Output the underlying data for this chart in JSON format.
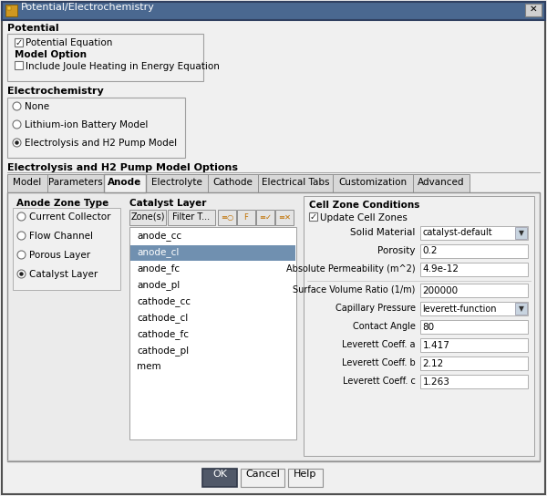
{
  "title": "Potential/Electrochemistry",
  "bg_color": "#f0f0f0",
  "white": "#ffffff",
  "blue_selected": "#7090b0",
  "tab_active": "Anode",
  "tabs": [
    "Model",
    "Parameters",
    "Anode",
    "Electrolyte",
    "Cathode",
    "Electrical Tabs",
    "Customization",
    "Advanced"
  ],
  "tab_widths": [
    44,
    62,
    46,
    68,
    55,
    82,
    88,
    62
  ],
  "section_potential": "Potential",
  "potential_eq_label": "Potential Equation",
  "model_option_label": "Model Option",
  "joule_heating_label": "Include Joule Heating in Energy Equation",
  "section_electrochemistry": "Electrochemistry",
  "radio_options": [
    "None",
    "Lithium-ion Battery Model",
    "Electrolysis and H2 Pump Model"
  ],
  "radio_selected": 2,
  "section_model_options": "Electrolysis and H2 Pump Model Options",
  "anode_zone_type_label": "Anode Zone Type",
  "anode_zone_options": [
    "Current Collector",
    "Flow Channel",
    "Porous Layer",
    "Catalyst Layer"
  ],
  "anode_zone_selected": 3,
  "catalyst_layer_label": "Catalyst Layer",
  "zones_label": "Zone(s)",
  "filter_label": "Filter T...",
  "zone_list": [
    "anode_cc",
    "anode_cl",
    "anode_fc",
    "anode_pl",
    "cathode_cc",
    "cathode_cl",
    "cathode_fc",
    "cathode_pl",
    "mem"
  ],
  "zone_selected": "anode_cl",
  "cell_zone_conditions_label": "Cell Zone Conditions",
  "update_cell_zones_label": "Update Cell Zones",
  "solid_material_label": "Solid Material",
  "solid_material_value": "catalyst-default",
  "porosity_label": "Porosity",
  "porosity_value": "0.2",
  "abs_perm_label": "Absolute Permeability (m^2)",
  "abs_perm_value": "4.9e-12",
  "surf_vol_label": "Surface Volume Ratio (1/m)",
  "surf_vol_value": "200000",
  "cap_pressure_label": "Capillary Pressure",
  "cap_pressure_value": "leverett-function",
  "contact_angle_label": "Contact Angle",
  "contact_angle_value": "80",
  "lev_a_label": "Leverett Coeff. a",
  "lev_a_value": "1.417",
  "lev_b_label": "Leverett Coeff. b",
  "lev_b_value": "2.12",
  "lev_c_label": "Leverett Coeff. c",
  "lev_c_value": "1.263",
  "btn_ok": "OK",
  "btn_cancel": "Cancel",
  "btn_help": "Help"
}
